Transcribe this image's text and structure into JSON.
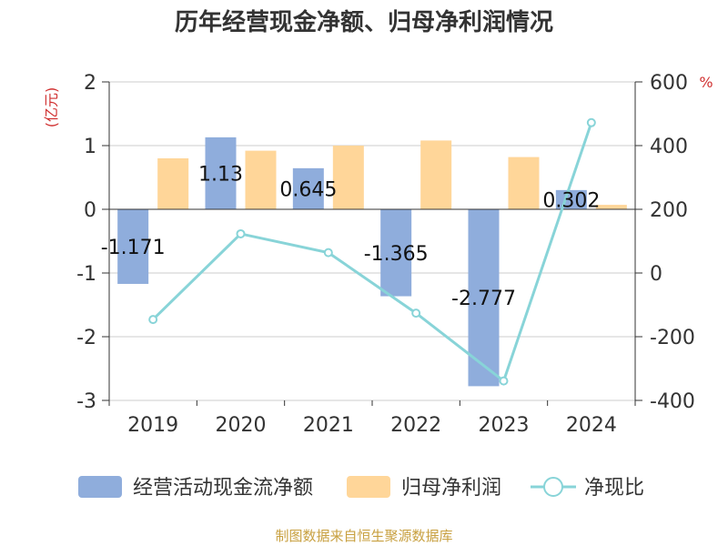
{
  "chart_data": {
    "type": "bar",
    "title": "历年经营现金净额、归母净利润情况",
    "categories": [
      "2019",
      "2020",
      "2021",
      "2022",
      "2023",
      "2024"
    ],
    "left_axis": {
      "unit": "(亿元)",
      "ylim": [
        -3,
        2
      ],
      "ticks": [
        2,
        1,
        0,
        -1,
        -2,
        -3
      ]
    },
    "right_axis": {
      "unit": "%",
      "ylim": [
        -400,
        600
      ],
      "ticks": [
        600,
        400,
        200,
        0,
        -200,
        -400
      ]
    },
    "series": [
      {
        "name": "经营活动现金流净额",
        "type": "bar",
        "axis": "left",
        "color": "#8faddc",
        "values": [
          -1.171,
          1.13,
          0.645,
          -1.365,
          -2.777,
          0.302
        ],
        "labels": [
          "-1.171",
          "1.13",
          "0.645",
          "-1.365",
          "-2.777",
          "0.302"
        ]
      },
      {
        "name": "归母净利润",
        "type": "bar",
        "axis": "left",
        "color": "#ffd699",
        "values": [
          0.8,
          0.92,
          1.0,
          1.08,
          0.82,
          0.07
        ]
      },
      {
        "name": "净现比",
        "type": "line",
        "axis": "right",
        "color": "#88d4d8",
        "values": [
          -146,
          123,
          64,
          -126,
          -339,
          472
        ]
      }
    ],
    "grid": true,
    "legend_position": "bottom"
  },
  "footer": {
    "source": "制图数据来自恒生聚源数据库"
  }
}
